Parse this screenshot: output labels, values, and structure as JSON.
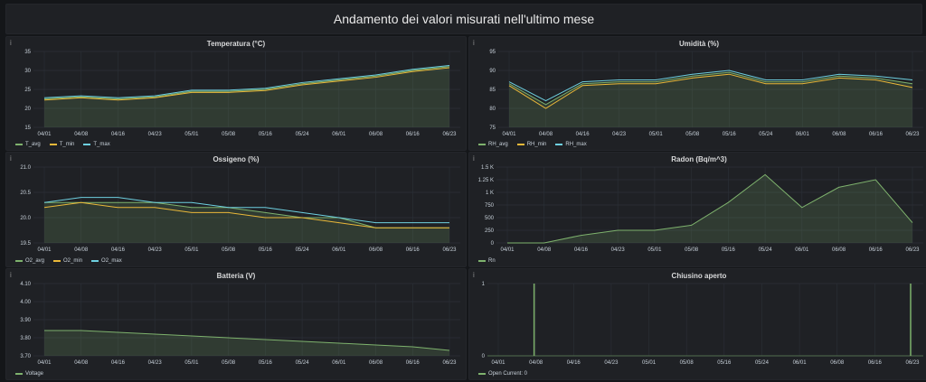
{
  "dashboard": {
    "title": "Andamento dei valori misurati nell'ultimo mese"
  },
  "icons": {
    "panel_info": "info-icon"
  },
  "x_ticks_a": [
    "04/01",
    "04/08",
    "04/16",
    "04/23",
    "05/01",
    "05/08",
    "05/16",
    "05/24",
    "06/01",
    "06/08",
    "06/16",
    "06/23"
  ],
  "x_ticks_b": [
    "04/01",
    "04/08",
    "04/16",
    "04/23",
    "05/01",
    "05/08",
    "05/16",
    "05/24",
    "06/01",
    "06/08",
    "06/16",
    "06/23"
  ],
  "colors": {
    "avg": "#7eb26d",
    "min": "#eab839",
    "max": "#6ed0e0",
    "grid": "#2c3037",
    "text": "#c7d0d9"
  },
  "panels": [
    {
      "id": "temperatura",
      "title": "Temperatura (°C)",
      "legend": [
        "T_avg",
        "T_min",
        "T_max"
      ],
      "chart_data": {
        "type": "area",
        "x": [
          "04/01",
          "04/08",
          "04/16",
          "04/23",
          "05/01",
          "05/08",
          "05/16",
          "05/24",
          "06/01",
          "06/08",
          "06/16",
          "06/23"
        ],
        "y_ticks": [
          "15",
          "20",
          "25",
          "30",
          "35"
        ],
        "ylim": [
          15,
          35
        ],
        "series": [
          {
            "name": "T_avg",
            "values": [
              22.5,
              23,
              22.5,
              23,
              24.5,
              24.5,
              25,
              26.5,
              27.5,
              28.5,
              30,
              31
            ]
          },
          {
            "name": "T_min",
            "values": [
              22.2,
              22.8,
              22.2,
              22.8,
              24.2,
              24.2,
              24.7,
              26.2,
              27.2,
              28.2,
              29.7,
              30.7
            ]
          },
          {
            "name": "T_max",
            "values": [
              22.8,
              23.3,
              22.8,
              23.3,
              24.8,
              24.8,
              25.3,
              26.8,
              27.8,
              28.8,
              30.3,
              31.3
            ]
          }
        ]
      }
    },
    {
      "id": "umidita",
      "title": "Umidità (%)",
      "legend": [
        "RH_avg",
        "RH_min",
        "RH_max"
      ],
      "chart_data": {
        "type": "area",
        "x": [
          "04/01",
          "04/08",
          "04/16",
          "04/23",
          "05/01",
          "05/08",
          "05/16",
          "05/24",
          "06/01",
          "06/08",
          "06/16",
          "06/23"
        ],
        "y_ticks": [
          "75",
          "80",
          "85",
          "90",
          "95"
        ],
        "ylim": [
          75,
          95
        ],
        "series": [
          {
            "name": "RH_avg",
            "values": [
              86.5,
              81,
              86.5,
              87,
              87,
              88.5,
              89.5,
              87,
              87,
              88.5,
              88,
              86.5
            ]
          },
          {
            "name": "RH_min",
            "values": [
              86,
              80,
              86,
              86.5,
              86.5,
              88,
              89,
              86.5,
              86.5,
              88,
              87.5,
              85.5
            ]
          },
          {
            "name": "RH_max",
            "values": [
              87,
              82,
              87,
              87.5,
              87.5,
              89,
              90,
              87.5,
              87.5,
              89,
              88.5,
              87.5
            ]
          }
        ]
      }
    },
    {
      "id": "ossigeno",
      "title": "Ossigeno (%)",
      "legend": [
        "O2_avg",
        "O2_min",
        "O2_max"
      ],
      "chart_data": {
        "type": "area",
        "x": [
          "04/01",
          "04/08",
          "04/16",
          "04/23",
          "05/01",
          "05/08",
          "05/16",
          "05/24",
          "06/01",
          "06/08",
          "06/16",
          "06/23"
        ],
        "y_ticks": [
          "19.5",
          "20.0",
          "20.5",
          "21.0"
        ],
        "ylim": [
          19.5,
          21.0
        ],
        "series": [
          {
            "name": "O2_avg",
            "values": [
              20.3,
              20.3,
              20.3,
              20.3,
              20.2,
              20.2,
              20.1,
              20.0,
              20.0,
              19.8,
              19.8,
              19.8
            ]
          },
          {
            "name": "O2_min",
            "values": [
              20.2,
              20.3,
              20.2,
              20.2,
              20.1,
              20.1,
              20.0,
              20.0,
              19.9,
              19.8,
              19.8,
              19.8
            ]
          },
          {
            "name": "O2_max",
            "values": [
              20.3,
              20.4,
              20.4,
              20.3,
              20.3,
              20.2,
              20.2,
              20.1,
              20.0,
              19.9,
              19.9,
              19.9
            ]
          }
        ]
      }
    },
    {
      "id": "radon",
      "title": "Radon (Bq/m^3)",
      "legend": [
        "Rn"
      ],
      "chart_data": {
        "type": "area",
        "x": [
          "04/01",
          "04/08",
          "04/16",
          "04/23",
          "05/01",
          "05/08",
          "05/16",
          "05/24",
          "06/01",
          "06/08",
          "06/16",
          "06/23"
        ],
        "y_ticks": [
          "0",
          "250",
          "500",
          "750",
          "1 K",
          "1.25 K",
          "1.5 K"
        ],
        "ylim": [
          0,
          1500
        ],
        "series": [
          {
            "name": "Rn",
            "values": [
              0,
              0,
              150,
              250,
              250,
              350,
              800,
              1350,
              700,
              1100,
              1250,
              400
            ]
          }
        ]
      }
    },
    {
      "id": "batteria",
      "title": "Batteria (V)",
      "legend": [
        "Voltage"
      ],
      "chart_data": {
        "type": "area",
        "x": [
          "04/01",
          "04/08",
          "04/16",
          "04/23",
          "05/01",
          "05/08",
          "05/16",
          "05/24",
          "06/01",
          "06/08",
          "06/16",
          "06/23"
        ],
        "y_ticks": [
          "3.70",
          "3.80",
          "3.90",
          "4.00",
          "4.10"
        ],
        "ylim": [
          3.7,
          4.1
        ],
        "series": [
          {
            "name": "Voltage",
            "values": [
              3.84,
              3.84,
              3.83,
              3.82,
              3.81,
              3.8,
              3.79,
              3.78,
              3.77,
              3.76,
              3.75,
              3.73
            ]
          }
        ]
      }
    },
    {
      "id": "chiusino",
      "title": "Chiusino aperto",
      "legend": [
        "Open  Current: 0"
      ],
      "chart_data": {
        "type": "line",
        "x": [
          "04/01",
          "04/08",
          "04/16",
          "04/23",
          "05/01",
          "05/08",
          "05/16",
          "05/24",
          "06/01",
          "06/08",
          "06/16",
          "06/23"
        ],
        "y_ticks": [
          "0",
          "1"
        ],
        "ylim": [
          0,
          1
        ],
        "series": [
          {
            "name": "Open",
            "values": [
              0,
              1,
              0,
              0,
              0,
              0,
              0,
              0,
              0,
              0,
              0,
              1
            ]
          }
        ]
      }
    }
  ]
}
